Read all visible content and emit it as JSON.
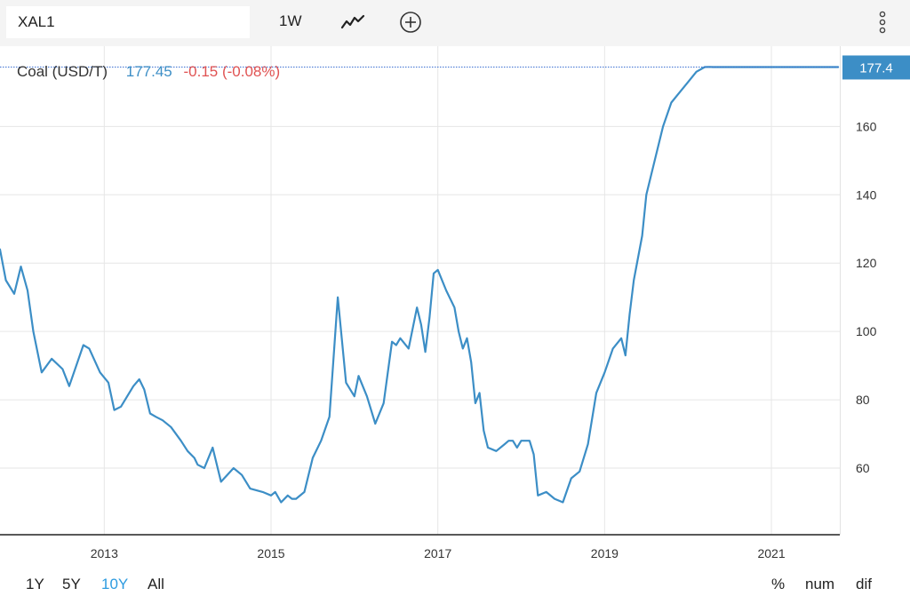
{
  "toolbar": {
    "symbol": "XAL1",
    "interval": "1W",
    "icons": {
      "chart_type": "line-chart-icon",
      "compare": "plus-circle-icon",
      "menu": "more-vert-icon"
    }
  },
  "legend": {
    "name": "Coal (USD/T)",
    "price": "177.45",
    "change": "-0.15 (-0.08%)"
  },
  "last_price_label": "177.4",
  "range_buttons": [
    {
      "label": "1Y",
      "active": false
    },
    {
      "label": "5Y",
      "active": false
    },
    {
      "label": "10Y",
      "active": true
    },
    {
      "label": "All",
      "active": false
    }
  ],
  "scale_buttons": [
    "%",
    "num",
    "dif"
  ],
  "colors": {
    "line": "#3c8ec6",
    "last_price": "#3c8ec6",
    "negative": "#e05252",
    "active_range": "#2d9be0"
  },
  "chart_data": {
    "type": "line",
    "title": "",
    "xlabel": "",
    "ylabel": "",
    "xlim": [
      2011.75,
      2021.82
    ],
    "ylim": [
      40.5,
      183.5
    ],
    "x_ticks": [
      2013,
      2015,
      2017,
      2019,
      2021
    ],
    "x_tick_labels": [
      "2013",
      "2015",
      "2017",
      "2019",
      "2021"
    ],
    "y_ticks": [
      60,
      80,
      100,
      120,
      140,
      160
    ],
    "y_tick_labels": [
      "60",
      "80",
      "100",
      "120",
      "140",
      "160"
    ],
    "grid": true,
    "last_value": 177.4,
    "series": [
      {
        "name": "Coal (USD/T)",
        "x": [
          2011.75,
          2011.82,
          2011.92,
          2012.0,
          2012.08,
          2012.15,
          2012.25,
          2012.37,
          2012.5,
          2012.58,
          2012.75,
          2012.82,
          2012.95,
          2013.05,
          2013.12,
          2013.2,
          2013.35,
          2013.42,
          2013.48,
          2013.55,
          2013.62,
          2013.7,
          2013.8,
          2013.92,
          2014.0,
          2014.08,
          2014.12,
          2014.2,
          2014.3,
          2014.4,
          2014.55,
          2014.65,
          2014.75,
          2014.9,
          2015.0,
          2015.05,
          2015.12,
          2015.2,
          2015.25,
          2015.3,
          2015.4,
          2015.5,
          2015.6,
          2015.7,
          2015.8,
          2015.9,
          2016.0,
          2016.05,
          2016.15,
          2016.25,
          2016.35,
          2016.45,
          2016.5,
          2016.55,
          2016.65,
          2016.75,
          2016.8,
          2016.85,
          2016.9,
          2016.95,
          2017.0,
          2017.1,
          2017.2,
          2017.25,
          2017.3,
          2017.35,
          2017.4,
          2017.45,
          2017.5,
          2017.55,
          2017.6,
          2017.7,
          2017.8,
          2017.85,
          2017.9,
          2017.95,
          2018.0,
          2018.1,
          2018.15,
          2018.2,
          2018.3,
          2018.4,
          2018.5,
          2018.6,
          2018.7,
          2018.8,
          2018.9,
          2019.0,
          2019.1,
          2019.2,
          2019.25,
          2019.3,
          2019.35,
          2019.45,
          2019.5,
          2019.6,
          2019.7,
          2019.8,
          2019.9,
          2020.0,
          2020.1,
          2020.2,
          2020.25,
          2020.3,
          2020.35,
          2020.45,
          2020.55,
          2020.65,
          2020.75,
          2020.85,
          2020.9,
          2020.95,
          2021.0,
          2021.05,
          2021.1,
          2021.2,
          2021.3,
          2021.35,
          2021.4,
          2021.45,
          2021.5,
          2021.55,
          2021.6,
          2021.65,
          2021.7,
          2021.75,
          2021.8
        ],
        "y": [
          124,
          115,
          111,
          119,
          112,
          100,
          88,
          92,
          89,
          84,
          96,
          95,
          88,
          85,
          77,
          78,
          84,
          86,
          83,
          76,
          75,
          74,
          72,
          68,
          65,
          63,
          61,
          60,
          66,
          56,
          60,
          58,
          54,
          53,
          52,
          53,
          50,
          52,
          51,
          51,
          53,
          63,
          68,
          75,
          110,
          85,
          81,
          87,
          81,
          73,
          79,
          97,
          96,
          98,
          95,
          107,
          102,
          94,
          104,
          117,
          118,
          112,
          107,
          100,
          95,
          98,
          91,
          79,
          82,
          71,
          66,
          65,
          67,
          68,
          68,
          66,
          68,
          68,
          64,
          52,
          53,
          51,
          50,
          57,
          59,
          67,
          82,
          88,
          95,
          98,
          93,
          105,
          115,
          128,
          140,
          150,
          160,
          167,
          170,
          173,
          176,
          177.4,
          177.45,
          177.4,
          177.4,
          177.4,
          177.4,
          177.4,
          177.4,
          177.4,
          177.4,
          177.4,
          177.4,
          177.4,
          177.4,
          177.4,
          177.4,
          177.4,
          177.4,
          177.4,
          177.4,
          177.4,
          177.4,
          177.4,
          177.4,
          177.4,
          177.4
        ]
      }
    ]
  }
}
